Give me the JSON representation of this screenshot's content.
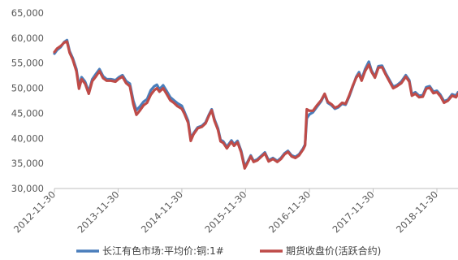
{
  "chart_data": {
    "type": "line",
    "title": "",
    "xlabel": "",
    "ylabel": "",
    "ylim": [
      30000,
      65000
    ],
    "y_ticks": [
      "30,000",
      "35,000",
      "40,000",
      "45,000",
      "50,000",
      "55,000",
      "60,000",
      "65,000"
    ],
    "x_ticks": [
      "2012-11-30",
      "2013-11-30",
      "2014-11-30",
      "2015-11-30",
      "2016-11-30",
      "2017-11-30",
      "2018-11-30"
    ],
    "x_range": [
      "2012-11-30",
      "2019-03-31"
    ],
    "grid": false,
    "legend_position": "bottom",
    "series": [
      {
        "name": "长江有色市场:平均价:铜:1#",
        "color": "#4a7ebb",
        "points": [
          [
            "2012-11-30",
            56900
          ],
          [
            "2012-12-15",
            57600
          ],
          [
            "2013-01-05",
            58200
          ],
          [
            "2013-01-25",
            59200
          ],
          [
            "2013-02-10",
            59600
          ],
          [
            "2013-02-25",
            57400
          ],
          [
            "2013-03-15",
            56000
          ],
          [
            "2013-04-05",
            53800
          ],
          [
            "2013-04-20",
            50400
          ],
          [
            "2013-05-05",
            52200
          ],
          [
            "2013-05-25",
            51300
          ],
          [
            "2013-06-15",
            49300
          ],
          [
            "2013-07-05",
            51800
          ],
          [
            "2013-07-25",
            52800
          ],
          [
            "2013-08-15",
            53800
          ],
          [
            "2013-09-05",
            52400
          ],
          [
            "2013-09-25",
            51800
          ],
          [
            "2013-10-20",
            51800
          ],
          [
            "2013-11-15",
            51600
          ],
          [
            "2013-12-05",
            52200
          ],
          [
            "2013-12-25",
            52600
          ],
          [
            "2014-01-15",
            51400
          ],
          [
            "2014-02-05",
            50900
          ],
          [
            "2014-02-25",
            47500
          ],
          [
            "2014-03-15",
            45600
          ],
          [
            "2014-04-05",
            46400
          ],
          [
            "2014-04-25",
            47300
          ],
          [
            "2014-05-15",
            47800
          ],
          [
            "2014-06-05",
            49600
          ],
          [
            "2014-06-25",
            50400
          ],
          [
            "2014-07-10",
            50700
          ],
          [
            "2014-07-25",
            49800
          ],
          [
            "2014-08-15",
            50600
          ],
          [
            "2014-09-05",
            49400
          ],
          [
            "2014-09-25",
            48200
          ],
          [
            "2014-10-15",
            47600
          ],
          [
            "2014-11-05",
            47000
          ],
          [
            "2014-11-30",
            46500
          ],
          [
            "2014-12-15",
            45300
          ],
          [
            "2015-01-05",
            43500
          ],
          [
            "2015-01-20",
            40000
          ],
          [
            "2015-02-05",
            41000
          ],
          [
            "2015-03-01",
            42200
          ],
          [
            "2015-03-25",
            42500
          ],
          [
            "2015-04-15",
            43200
          ],
          [
            "2015-05-05",
            44800
          ],
          [
            "2015-05-20",
            45800
          ],
          [
            "2015-06-05",
            43800
          ],
          [
            "2015-06-25",
            42000
          ],
          [
            "2015-07-10",
            39700
          ],
          [
            "2015-07-25",
            39400
          ],
          [
            "2015-08-15",
            38300
          ],
          [
            "2015-08-25",
            38800
          ],
          [
            "2015-09-10",
            39600
          ],
          [
            "2015-09-25",
            38800
          ],
          [
            "2015-10-15",
            39500
          ],
          [
            "2015-11-05",
            37500
          ],
          [
            "2015-11-25",
            34500
          ],
          [
            "2015-12-10",
            35200
          ],
          [
            "2015-12-30",
            36600
          ],
          [
            "2016-01-15",
            35500
          ],
          [
            "2016-02-05",
            35800
          ],
          [
            "2016-03-01",
            36600
          ],
          [
            "2016-03-20",
            37200
          ],
          [
            "2016-04-10",
            35600
          ],
          [
            "2016-05-05",
            36100
          ],
          [
            "2016-05-30",
            35500
          ],
          [
            "2016-06-20",
            36100
          ],
          [
            "2016-07-10",
            37000
          ],
          [
            "2016-07-30",
            37500
          ],
          [
            "2016-08-20",
            36600
          ],
          [
            "2016-09-10",
            36300
          ],
          [
            "2016-10-01",
            36800
          ],
          [
            "2016-10-25",
            38000
          ],
          [
            "2016-11-05",
            38800
          ],
          [
            "2016-11-15",
            44000
          ],
          [
            "2016-11-30",
            44800
          ],
          [
            "2016-12-20",
            45200
          ],
          [
            "2017-01-10",
            46200
          ],
          [
            "2017-02-05",
            47400
          ],
          [
            "2017-02-25",
            48800
          ],
          [
            "2017-03-15",
            47100
          ],
          [
            "2017-04-05",
            46600
          ],
          [
            "2017-04-25",
            45900
          ],
          [
            "2017-05-15",
            46200
          ],
          [
            "2017-06-05",
            46900
          ],
          [
            "2017-06-25",
            46700
          ],
          [
            "2017-07-15",
            48300
          ],
          [
            "2017-08-05",
            50300
          ],
          [
            "2017-08-25",
            52300
          ],
          [
            "2017-09-10",
            53200
          ],
          [
            "2017-09-25",
            51800
          ],
          [
            "2017-10-15",
            53800
          ],
          [
            "2017-11-05",
            55300
          ],
          [
            "2017-11-20",
            53600
          ],
          [
            "2017-12-10",
            52300
          ],
          [
            "2017-12-30",
            54400
          ],
          [
            "2018-01-20",
            54500
          ],
          [
            "2018-02-10",
            53000
          ],
          [
            "2018-03-01",
            51800
          ],
          [
            "2018-03-25",
            50300
          ],
          [
            "2018-04-15",
            50600
          ],
          [
            "2018-05-10",
            51300
          ],
          [
            "2018-06-05",
            52600
          ],
          [
            "2018-06-25",
            51600
          ],
          [
            "2018-07-10",
            48800
          ],
          [
            "2018-07-30",
            49200
          ],
          [
            "2018-08-20",
            48500
          ],
          [
            "2018-09-10",
            48600
          ],
          [
            "2018-09-30",
            50200
          ],
          [
            "2018-10-20",
            50400
          ],
          [
            "2018-11-10",
            49300
          ],
          [
            "2018-11-30",
            49500
          ],
          [
            "2018-12-20",
            48700
          ],
          [
            "2019-01-10",
            47400
          ],
          [
            "2019-02-01",
            47700
          ],
          [
            "2019-02-25",
            48800
          ],
          [
            "2019-03-20",
            48500
          ],
          [
            "2019-03-31",
            49200
          ]
        ]
      },
      {
        "name": "期货收盘价(活跃合约)",
        "color": "#be4b48",
        "points": [
          [
            "2012-11-30",
            57200
          ],
          [
            "2012-12-15",
            57900
          ],
          [
            "2013-01-05",
            58400
          ],
          [
            "2013-01-25",
            59100
          ],
          [
            "2013-02-10",
            59300
          ],
          [
            "2013-02-25",
            57100
          ],
          [
            "2013-03-15",
            55700
          ],
          [
            "2013-04-05",
            53400
          ],
          [
            "2013-04-20",
            49900
          ],
          [
            "2013-05-05",
            51800
          ],
          [
            "2013-05-25",
            50900
          ],
          [
            "2013-06-15",
            48900
          ],
          [
            "2013-07-05",
            51400
          ],
          [
            "2013-07-25",
            52300
          ],
          [
            "2013-08-15",
            53400
          ],
          [
            "2013-09-05",
            52000
          ],
          [
            "2013-09-25",
            51500
          ],
          [
            "2013-10-20",
            51500
          ],
          [
            "2013-11-15",
            51300
          ],
          [
            "2013-12-05",
            51900
          ],
          [
            "2013-12-25",
            52300
          ],
          [
            "2014-01-15",
            51000
          ],
          [
            "2014-02-05",
            50400
          ],
          [
            "2014-02-25",
            46800
          ],
          [
            "2014-03-15",
            44700
          ],
          [
            "2014-04-05",
            45600
          ],
          [
            "2014-04-25",
            46600
          ],
          [
            "2014-05-15",
            47100
          ],
          [
            "2014-06-05",
            48700
          ],
          [
            "2014-06-25",
            49600
          ],
          [
            "2014-07-10",
            50000
          ],
          [
            "2014-07-25",
            49300
          ],
          [
            "2014-08-15",
            50000
          ],
          [
            "2014-09-05",
            48800
          ],
          [
            "2014-09-25",
            47600
          ],
          [
            "2014-10-15",
            47100
          ],
          [
            "2014-11-05",
            46400
          ],
          [
            "2014-11-30",
            45900
          ],
          [
            "2014-12-15",
            44900
          ],
          [
            "2015-01-05",
            43100
          ],
          [
            "2015-01-20",
            39500
          ],
          [
            "2015-02-05",
            40800
          ],
          [
            "2015-03-01",
            42000
          ],
          [
            "2015-03-25",
            42300
          ],
          [
            "2015-04-15",
            43000
          ],
          [
            "2015-05-05",
            44600
          ],
          [
            "2015-05-20",
            45600
          ],
          [
            "2015-06-05",
            43500
          ],
          [
            "2015-06-25",
            41700
          ],
          [
            "2015-07-10",
            39400
          ],
          [
            "2015-07-25",
            39100
          ],
          [
            "2015-08-15",
            38000
          ],
          [
            "2015-08-25",
            38500
          ],
          [
            "2015-09-10",
            39300
          ],
          [
            "2015-09-25",
            38500
          ],
          [
            "2015-10-15",
            39200
          ],
          [
            "2015-11-05",
            37200
          ],
          [
            "2015-11-25",
            34000
          ],
          [
            "2015-12-10",
            35000
          ],
          [
            "2015-12-30",
            36400
          ],
          [
            "2016-01-15",
            35300
          ],
          [
            "2016-02-05",
            35600
          ],
          [
            "2016-03-01",
            36400
          ],
          [
            "2016-03-20",
            37000
          ],
          [
            "2016-04-10",
            35400
          ],
          [
            "2016-05-05",
            35900
          ],
          [
            "2016-05-30",
            35300
          ],
          [
            "2016-06-20",
            35900
          ],
          [
            "2016-07-10",
            36800
          ],
          [
            "2016-07-30",
            37300
          ],
          [
            "2016-08-20",
            36400
          ],
          [
            "2016-09-10",
            36100
          ],
          [
            "2016-10-01",
            36600
          ],
          [
            "2016-10-25",
            37800
          ],
          [
            "2016-11-05",
            38600
          ],
          [
            "2016-11-15",
            45800
          ],
          [
            "2016-11-30",
            45500
          ],
          [
            "2016-12-20",
            45500
          ],
          [
            "2017-01-10",
            46500
          ],
          [
            "2017-02-05",
            47600
          ],
          [
            "2017-02-25",
            48900
          ],
          [
            "2017-03-15",
            47300
          ],
          [
            "2017-04-05",
            46800
          ],
          [
            "2017-04-25",
            46100
          ],
          [
            "2017-05-15",
            46400
          ],
          [
            "2017-06-05",
            47100
          ],
          [
            "2017-06-25",
            46900
          ],
          [
            "2017-07-15",
            48500
          ],
          [
            "2017-08-05",
            50500
          ],
          [
            "2017-08-25",
            52100
          ],
          [
            "2017-09-10",
            52800
          ],
          [
            "2017-09-25",
            51500
          ],
          [
            "2017-10-15",
            53400
          ],
          [
            "2017-11-05",
            54700
          ],
          [
            "2017-11-20",
            53300
          ],
          [
            "2017-12-10",
            52100
          ],
          [
            "2017-12-30",
            54100
          ],
          [
            "2018-01-20",
            54200
          ],
          [
            "2018-02-10",
            52700
          ],
          [
            "2018-03-01",
            51500
          ],
          [
            "2018-03-25",
            50000
          ],
          [
            "2018-04-15",
            50400
          ],
          [
            "2018-05-10",
            51000
          ],
          [
            "2018-06-05",
            52300
          ],
          [
            "2018-06-25",
            51300
          ],
          [
            "2018-07-10",
            48500
          ],
          [
            "2018-07-30",
            48900
          ],
          [
            "2018-08-20",
            48200
          ],
          [
            "2018-09-10",
            48300
          ],
          [
            "2018-09-30",
            49900
          ],
          [
            "2018-10-20",
            50100
          ],
          [
            "2018-11-10",
            49000
          ],
          [
            "2018-11-30",
            49200
          ],
          [
            "2018-12-20",
            48400
          ],
          [
            "2019-01-10",
            47100
          ],
          [
            "2019-02-01",
            47500
          ],
          [
            "2019-02-25",
            48500
          ],
          [
            "2019-03-20",
            48200
          ],
          [
            "2019-03-31",
            48900
          ]
        ]
      }
    ]
  }
}
